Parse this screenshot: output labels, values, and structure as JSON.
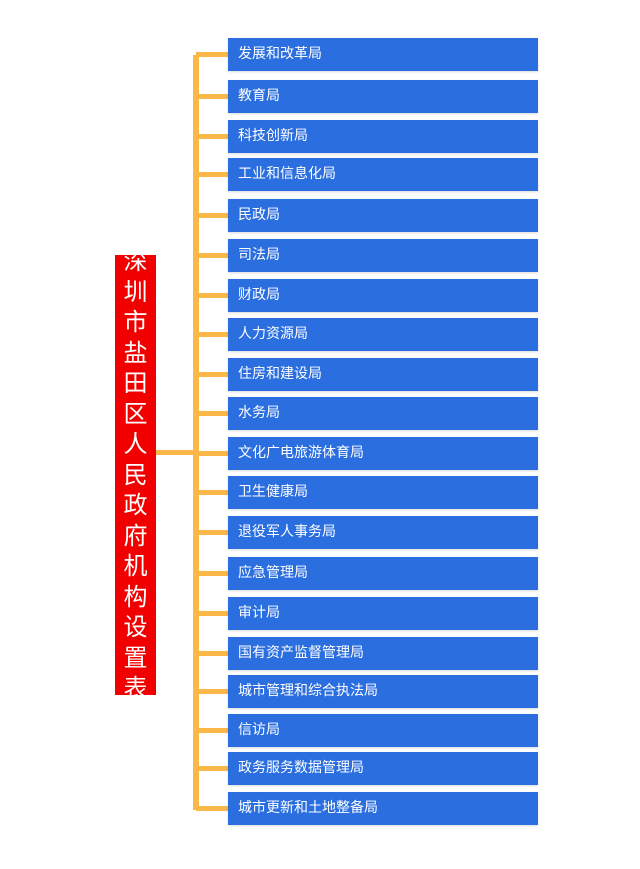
{
  "title": "深圳市盐田区人民政府机构设置表",
  "colors": {
    "root": "#f10000",
    "box": "#2a6ee0",
    "connector": "#fbb848"
  },
  "departments": [
    "发展和改革局",
    "教育局",
    "科技创新局",
    "工业和信息化局",
    "民政局",
    "司法局",
    "财政局",
    "人力资源局",
    "住房和建设局",
    "水务局",
    "文化广电旅游体育局",
    "卫生健康局",
    "退役军人事务局",
    "应急管理局",
    "审计局",
    "国有资产监督管理局",
    "城市管理和综合执法局",
    "信访局",
    "政务服务数据管理局",
    "城市更新和土地整备局"
  ]
}
